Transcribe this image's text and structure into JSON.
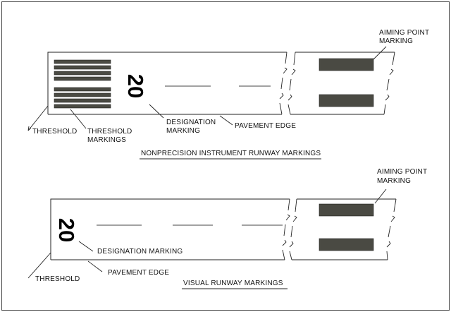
{
  "diagram": {
    "top": {
      "designation_number": "20",
      "labels": {
        "threshold": "THRESHOLD",
        "threshold_markings_line1": "THRESHOLD",
        "threshold_markings_line2": "MARKINGS",
        "designation_marking_line1": "DESIGNATION",
        "designation_marking_line2": "MARKING",
        "pavement_edge": "PAVEMENT EDGE",
        "aiming_point_line1": "AIMING POINT",
        "aiming_point_line2": "MARKING"
      },
      "caption": "NONPRECISION INSTRUMENT RUNWAY MARKINGS"
    },
    "bottom": {
      "designation_number": "20",
      "labels": {
        "threshold": "THRESHOLD",
        "designation_marking": "DESIGNATION MARKING",
        "pavement_edge": "PAVEMENT EDGE",
        "aiming_point_line1": "AIMING POINT",
        "aiming_point_line2": "MARKING"
      },
      "caption": "VISUAL RUNWAY MARKINGS"
    }
  }
}
